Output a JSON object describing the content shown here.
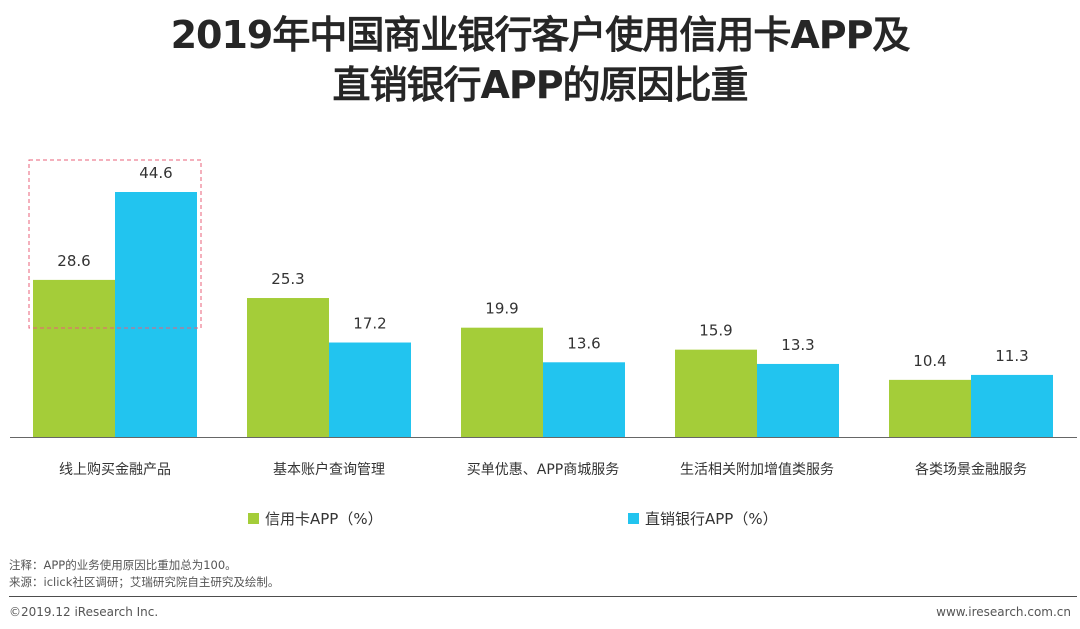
{
  "title_line1": "2019年中国商业银行客户使用信用卡APP及",
  "title_line2": "直销银行APP的原因比重",
  "chart_data": {
    "type": "bar",
    "categories": [
      "线上购买金融产品",
      "基本账户查询管理",
      "买单优惠、APP商城服务",
      "生活相关附加增值类服务",
      "各类场景金融服务"
    ],
    "series": [
      {
        "name": "信用卡APP（%）",
        "color": "#a4cd39",
        "values": [
          28.6,
          25.3,
          19.9,
          15.9,
          10.4
        ]
      },
      {
        "name": "直销银行APP（%）",
        "color": "#22c4ef",
        "values": [
          44.6,
          17.2,
          13.6,
          13.3,
          11.3
        ]
      }
    ],
    "ylim": [
      0,
      44.6
    ],
    "highlight_category": "线上购买金融产品",
    "highlight_color": "#e8607a"
  },
  "notes": {
    "note": "注释：APP的业务使用原因比重加总为100。",
    "source": "来源：iclick社区调研；艾瑞研究院自主研究及绘制。"
  },
  "footer": {
    "copyright": "©2019.12 iResearch Inc.",
    "website": "www.iresearch.com.cn"
  }
}
